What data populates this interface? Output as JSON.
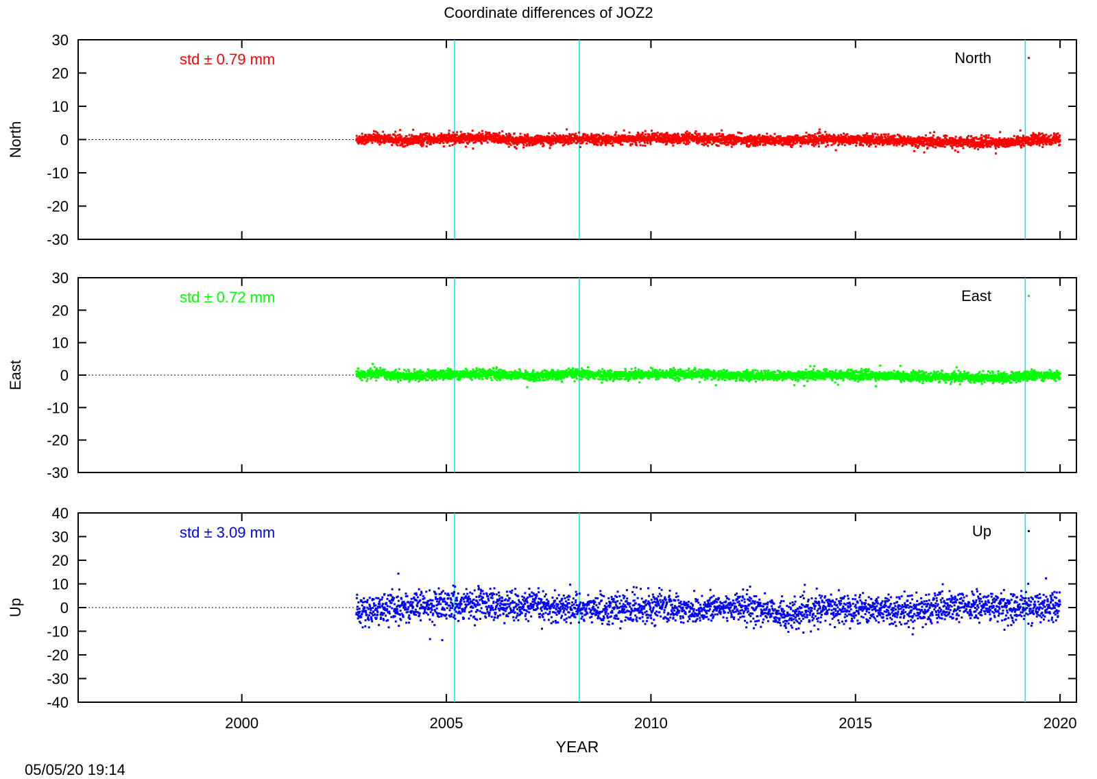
{
  "chart_data": {
    "type": "scatter",
    "title": "Coordinate differences of JOZ2",
    "xlabel": "YEAR",
    "timestamp": "05/05/20 19:14",
    "xlim": [
      1996.0,
      2020.4
    ],
    "x_ticks": [
      2000,
      2005,
      2010,
      2015,
      2020
    ],
    "data_range_years": [
      2002.8,
      2020.0
    ],
    "reference_line": "dotted zero line",
    "event_lines": {
      "years": [
        2005.2,
        2008.25,
        2019.15
      ],
      "color": "#00e5ee"
    },
    "legend_placement": "top-right",
    "panels": [
      {
        "name": "North",
        "ylabel": "North",
        "ylim": [
          -30,
          30
        ],
        "y_ticks": [
          30,
          20,
          10,
          0,
          -10,
          -20,
          -30
        ],
        "std_label": "std ± 0.79 mm",
        "legend": "North",
        "color": "#ff0000",
        "std": 0.79,
        "trend_points": [
          [
            2002.8,
            0.0
          ],
          [
            2003.3,
            0.5
          ],
          [
            2004.0,
            -0.3
          ],
          [
            2005.0,
            0.2
          ],
          [
            2006.0,
            0.6
          ],
          [
            2007.0,
            -0.3
          ],
          [
            2008.0,
            0.3
          ],
          [
            2009.0,
            0.0
          ],
          [
            2010.0,
            0.3
          ],
          [
            2011.0,
            0.3
          ],
          [
            2012.0,
            -0.1
          ],
          [
            2013.0,
            -0.3
          ],
          [
            2014.0,
            0.0
          ],
          [
            2015.0,
            0.0
          ],
          [
            2016.0,
            -0.3
          ],
          [
            2017.0,
            -0.8
          ],
          [
            2018.0,
            -0.8
          ],
          [
            2018.8,
            -0.9
          ],
          [
            2019.2,
            -0.1
          ],
          [
            2020.0,
            0.0
          ]
        ]
      },
      {
        "name": "East",
        "ylabel": "East",
        "ylim": [
          -30,
          30
        ],
        "y_ticks": [
          30,
          20,
          10,
          0,
          -10,
          -20,
          -30
        ],
        "std_label": "std ± 0.72 mm",
        "legend": "East",
        "color": "#00ff00",
        "std": 0.72,
        "trend_points": [
          [
            2002.8,
            0.0
          ],
          [
            2003.3,
            0.5
          ],
          [
            2004.0,
            -0.3
          ],
          [
            2005.0,
            0.2
          ],
          [
            2006.0,
            0.5
          ],
          [
            2007.0,
            -0.3
          ],
          [
            2008.0,
            0.3
          ],
          [
            2009.0,
            0.0
          ],
          [
            2010.0,
            0.3
          ],
          [
            2011.0,
            0.3
          ],
          [
            2012.0,
            -0.1
          ],
          [
            2013.0,
            -0.3
          ],
          [
            2014.0,
            0.0
          ],
          [
            2015.0,
            0.0
          ],
          [
            2016.0,
            -0.3
          ],
          [
            2017.0,
            -0.6
          ],
          [
            2018.0,
            -0.7
          ],
          [
            2018.8,
            -0.8
          ],
          [
            2019.2,
            -0.1
          ],
          [
            2020.0,
            0.0
          ]
        ]
      },
      {
        "name": "Up",
        "ylabel": "Up",
        "ylim": [
          -40,
          40
        ],
        "y_ticks": [
          40,
          30,
          20,
          10,
          0,
          -10,
          -20,
          -30,
          -40
        ],
        "std_label": "std ± 3.09 mm",
        "legend": "Up",
        "color": "#0000ff",
        "std": 3.09,
        "trend_points": [
          [
            2002.8,
            -2.0
          ],
          [
            2003.5,
            0.0
          ],
          [
            2004.5,
            0.5
          ],
          [
            2005.2,
            1.5
          ],
          [
            2006.0,
            1.5
          ],
          [
            2007.0,
            0.5
          ],
          [
            2008.0,
            0.0
          ],
          [
            2009.0,
            -1.0
          ],
          [
            2010.0,
            0.5
          ],
          [
            2011.0,
            -1.0
          ],
          [
            2012.0,
            0.5
          ],
          [
            2013.0,
            -1.5
          ],
          [
            2013.4,
            -4.0
          ],
          [
            2014.0,
            -1.0
          ],
          [
            2015.0,
            0.0
          ],
          [
            2016.0,
            -1.0
          ],
          [
            2017.0,
            -0.5
          ],
          [
            2018.0,
            0.5
          ],
          [
            2019.0,
            0.0
          ],
          [
            2020.0,
            1.0
          ]
        ]
      }
    ]
  }
}
